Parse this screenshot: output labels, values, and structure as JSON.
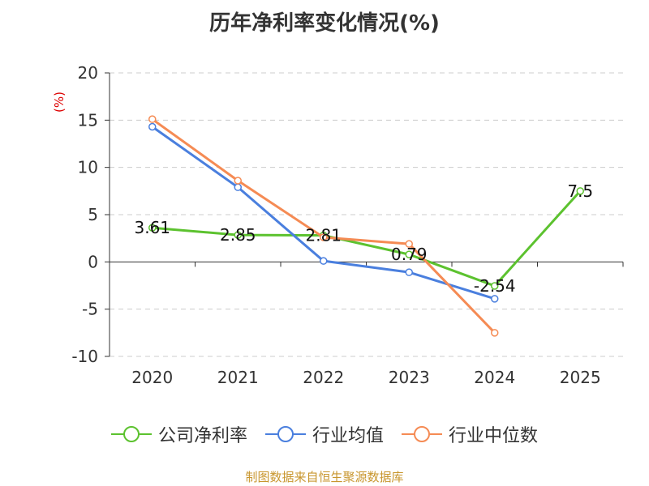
{
  "title": "历年净利率变化情况(%)",
  "source": "制图数据来自恒生聚源数据库",
  "chart_data": {
    "type": "line",
    "ylabel": "(%)",
    "ylim": [
      -10,
      20
    ],
    "yticks": [
      "20",
      "15",
      "10",
      "5",
      "0",
      "-5",
      "-10"
    ],
    "categories": [
      "2020",
      "2021",
      "2022",
      "2023",
      "2024",
      "2025"
    ],
    "grid": true,
    "legend_position": "bottom",
    "series": [
      {
        "name": "公司净利率",
        "color": "#5cc22f",
        "values": [
          3.61,
          2.85,
          2.81,
          0.79,
          -2.54,
          7.5
        ],
        "labels": [
          "3.61",
          "2.85",
          "2.81",
          "0.79",
          "-2.54",
          "7.5"
        ]
      },
      {
        "name": "行业均值",
        "color": "#4a7fde",
        "values": [
          14.3,
          7.9,
          0.1,
          -1.1,
          -3.9,
          null
        ]
      },
      {
        "name": "行业中位数",
        "color": "#f58b54",
        "values": [
          15.1,
          8.6,
          2.6,
          1.9,
          -7.5,
          null
        ]
      }
    ]
  }
}
